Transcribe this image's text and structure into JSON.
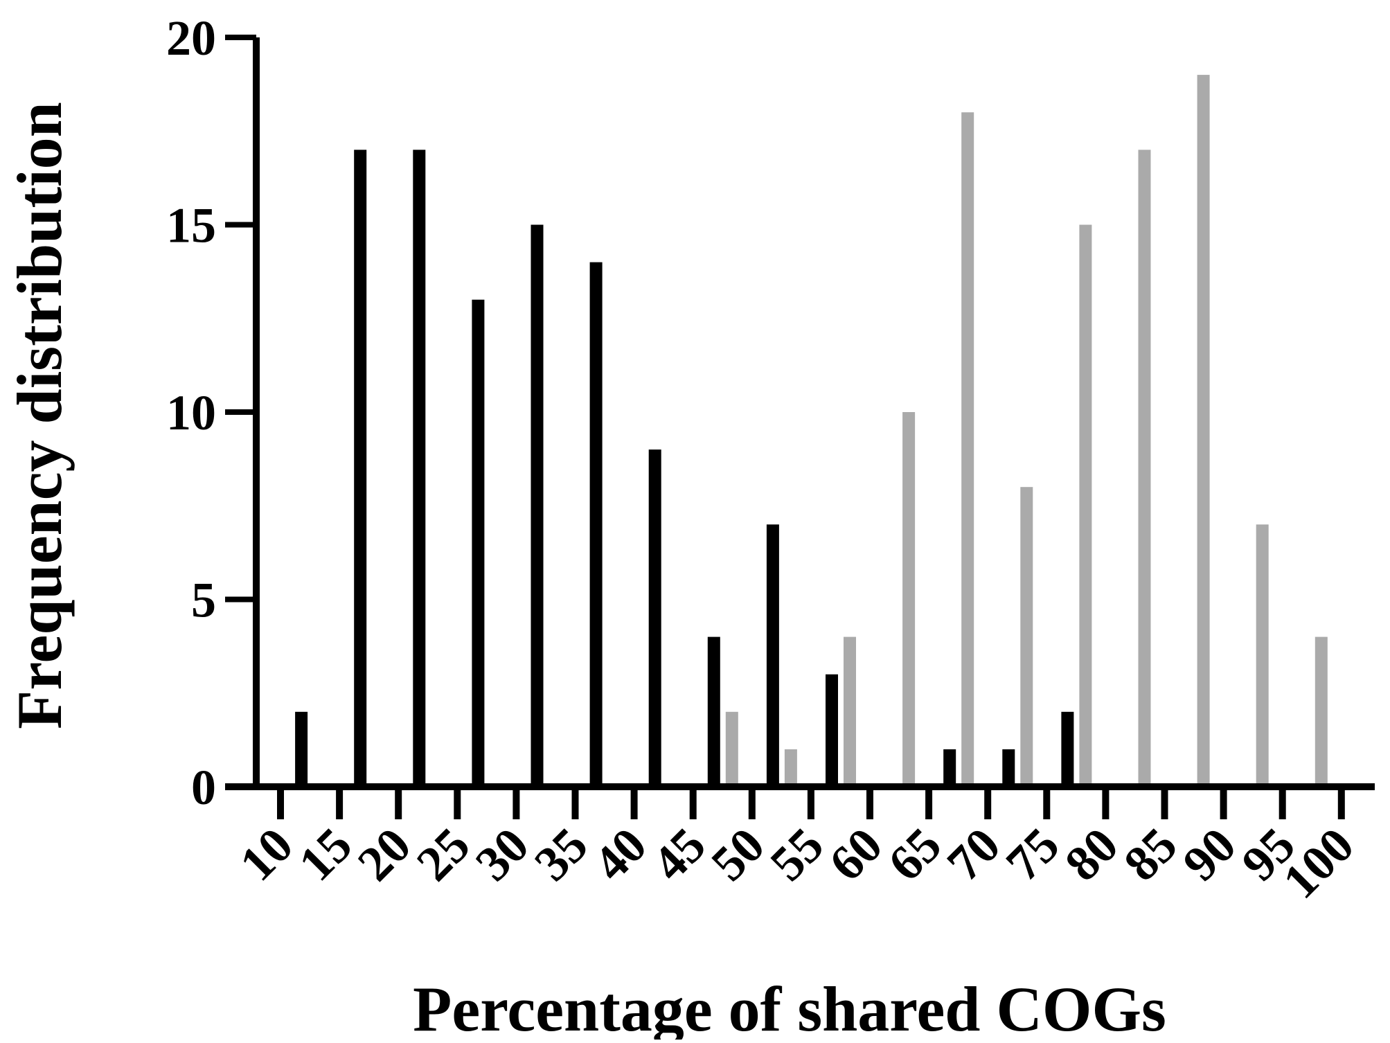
{
  "chart_data": {
    "type": "bar",
    "title": "",
    "xlabel": "Percentage of shared COGs",
    "ylabel": "Frequency distribution",
    "categories": [
      "10",
      "15",
      "20",
      "25",
      "30",
      "35",
      "40",
      "45",
      "50",
      "55",
      "60",
      "65",
      "70",
      "75",
      "80",
      "85",
      "90",
      "95",
      "100"
    ],
    "ylim": [
      0,
      20
    ],
    "yticks": [
      "0",
      "5",
      "10",
      "15",
      "20"
    ],
    "grid": false,
    "legend": "none",
    "series": [
      {
        "color": "#000000",
        "values": [
          0,
          2,
          17,
          17,
          13,
          15,
          14,
          9,
          4,
          7,
          3,
          0,
          1,
          1,
          2,
          0,
          0,
          0,
          0
        ]
      },
      {
        "color": "#aaaaaa",
        "values": [
          0,
          0,
          0,
          0,
          0,
          0,
          0,
          0,
          2,
          1,
          4,
          10,
          18,
          8,
          15,
          17,
          19,
          7,
          4
        ]
      }
    ]
  }
}
